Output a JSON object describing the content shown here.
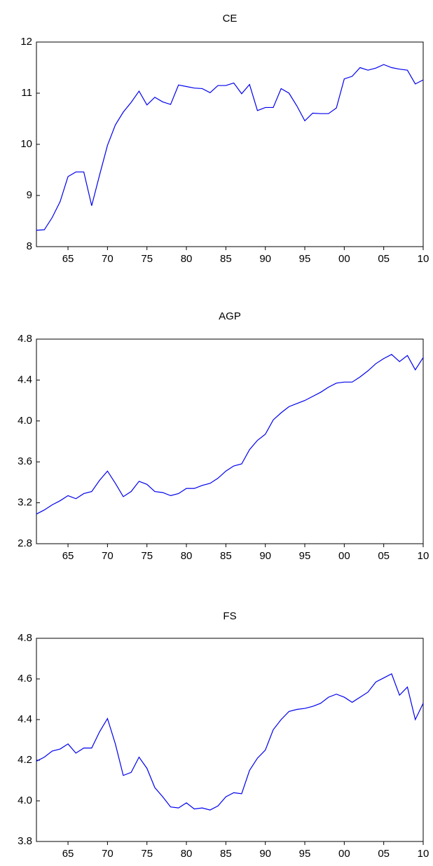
{
  "chart_data": [
    {
      "type": "line",
      "title": "CE",
      "x": [
        1961,
        1962,
        1963,
        1964,
        1965,
        1966,
        1967,
        1968,
        1969,
        1970,
        1971,
        1972,
        1973,
        1974,
        1975,
        1976,
        1977,
        1978,
        1979,
        1980,
        1981,
        1982,
        1983,
        1984,
        1985,
        1986,
        1987,
        1988,
        1989,
        1990,
        1991,
        1992,
        1993,
        1994,
        1995,
        1996,
        1997,
        1998,
        1999,
        2000,
        2001,
        2002,
        2003,
        2004,
        2005,
        2006,
        2007,
        2008,
        2009,
        2010
      ],
      "series": [
        {
          "color": "#0000ee",
          "values": [
            8.32,
            8.33,
            8.57,
            8.88,
            9.37,
            9.46,
            9.46,
            8.8,
            9.4,
            9.98,
            10.38,
            10.63,
            10.82,
            11.04,
            10.77,
            10.92,
            10.83,
            10.78,
            11.16,
            11.13,
            11.1,
            11.09,
            11.01,
            11.15,
            11.15,
            11.2,
            10.99,
            11.17,
            10.66,
            10.72,
            10.72,
            11.09,
            11.0,
            10.75,
            10.46,
            10.61,
            10.6,
            10.6,
            10.71,
            11.28,
            11.33,
            11.5,
            11.45,
            11.49,
            11.56,
            11.5,
            11.47,
            11.45,
            11.18,
            11.26
          ]
        }
      ],
      "xlim": [
        1961,
        2010
      ],
      "xticks": [
        {
          "value": 1965,
          "label": "65"
        },
        {
          "value": 1970,
          "label": "70"
        },
        {
          "value": 1975,
          "label": "75"
        },
        {
          "value": 1980,
          "label": "80"
        },
        {
          "value": 1985,
          "label": "85"
        },
        {
          "value": 1990,
          "label": "90"
        },
        {
          "value": 1995,
          "label": "95"
        },
        {
          "value": 2000,
          "label": "00"
        },
        {
          "value": 2005,
          "label": "05"
        },
        {
          "value": 2010,
          "label": "10"
        }
      ],
      "ylim": [
        8,
        12
      ],
      "yticks": [
        8,
        9,
        10,
        11,
        12
      ]
    },
    {
      "type": "line",
      "title": "AGP",
      "x": [
        1961,
        1962,
        1963,
        1964,
        1965,
        1966,
        1967,
        1968,
        1969,
        1970,
        1971,
        1972,
        1973,
        1974,
        1975,
        1976,
        1977,
        1978,
        1979,
        1980,
        1981,
        1982,
        1983,
        1984,
        1985,
        1986,
        1987,
        1988,
        1989,
        1990,
        1991,
        1992,
        1993,
        1994,
        1995,
        1996,
        1997,
        1998,
        1999,
        2000,
        2001,
        2002,
        2003,
        2004,
        2005,
        2006,
        2007,
        2008,
        2009,
        2010
      ],
      "series": [
        {
          "color": "#0000ee",
          "values": [
            3.09,
            3.13,
            3.18,
            3.22,
            3.27,
            3.24,
            3.29,
            3.31,
            3.42,
            3.51,
            3.39,
            3.26,
            3.31,
            3.41,
            3.38,
            3.31,
            3.3,
            3.27,
            3.29,
            3.34,
            3.34,
            3.37,
            3.39,
            3.44,
            3.51,
            3.56,
            3.58,
            3.72,
            3.81,
            3.87,
            4.01,
            4.08,
            4.14,
            4.17,
            4.2,
            4.24,
            4.28,
            4.33,
            4.37,
            4.38,
            4.38,
            4.43,
            4.49,
            4.56,
            4.61,
            4.65,
            4.58,
            4.64,
            4.5,
            4.62
          ]
        }
      ],
      "xlim": [
        1961,
        2010
      ],
      "xticks": [
        {
          "value": 1965,
          "label": "65"
        },
        {
          "value": 1970,
          "label": "70"
        },
        {
          "value": 1975,
          "label": "75"
        },
        {
          "value": 1980,
          "label": "80"
        },
        {
          "value": 1985,
          "label": "85"
        },
        {
          "value": 1990,
          "label": "90"
        },
        {
          "value": 1995,
          "label": "95"
        },
        {
          "value": 2000,
          "label": "00"
        },
        {
          "value": 2005,
          "label": "05"
        },
        {
          "value": 2010,
          "label": "10"
        }
      ],
      "ylim": [
        2.8,
        4.8
      ],
      "yticks": [
        2.8,
        3.2,
        3.6,
        {
          "value": 4,
          "label": "4.0"
        },
        4.4,
        4.8
      ]
    },
    {
      "type": "line",
      "title": "FS",
      "x": [
        1961,
        1962,
        1963,
        1964,
        1965,
        1966,
        1967,
        1968,
        1969,
        1970,
        1971,
        1972,
        1973,
        1974,
        1975,
        1976,
        1977,
        1978,
        1979,
        1980,
        1981,
        1982,
        1983,
        1984,
        1985,
        1986,
        1987,
        1988,
        1989,
        1990,
        1991,
        1992,
        1993,
        1994,
        1995,
        1996,
        1997,
        1998,
        1999,
        2000,
        2001,
        2002,
        2003,
        2004,
        2005,
        2006,
        2007,
        2008,
        2009,
        2010
      ],
      "series": [
        {
          "color": "#0000ee",
          "values": [
            4.195,
            4.215,
            4.245,
            4.255,
            4.28,
            4.235,
            4.26,
            4.26,
            4.34,
            4.405,
            4.28,
            4.125,
            4.14,
            4.215,
            4.16,
            4.065,
            4.02,
            3.97,
            3.965,
            3.99,
            3.96,
            3.965,
            3.955,
            3.975,
            4.02,
            4.04,
            4.035,
            4.15,
            4.21,
            4.25,
            4.35,
            4.4,
            4.44,
            4.45,
            4.455,
            4.465,
            4.48,
            4.51,
            4.525,
            4.51,
            4.485,
            4.51,
            4.535,
            4.585,
            4.605,
            4.625,
            4.52,
            4.56,
            4.4,
            4.48
          ]
        }
      ],
      "xlim": [
        1961,
        2010
      ],
      "xticks": [
        {
          "value": 1965,
          "label": "65"
        },
        {
          "value": 1970,
          "label": "70"
        },
        {
          "value": 1975,
          "label": "75"
        },
        {
          "value": 1980,
          "label": "80"
        },
        {
          "value": 1985,
          "label": "85"
        },
        {
          "value": 1990,
          "label": "90"
        },
        {
          "value": 1995,
          "label": "95"
        },
        {
          "value": 2000,
          "label": "00"
        },
        {
          "value": 2005,
          "label": "05"
        },
        {
          "value": 2010,
          "label": "10"
        }
      ],
      "ylim": [
        3.8,
        4.8
      ],
      "yticks": [
        3.8,
        {
          "value": 4,
          "label": "4.0"
        },
        4.2,
        4.4,
        4.6,
        4.8
      ]
    }
  ]
}
